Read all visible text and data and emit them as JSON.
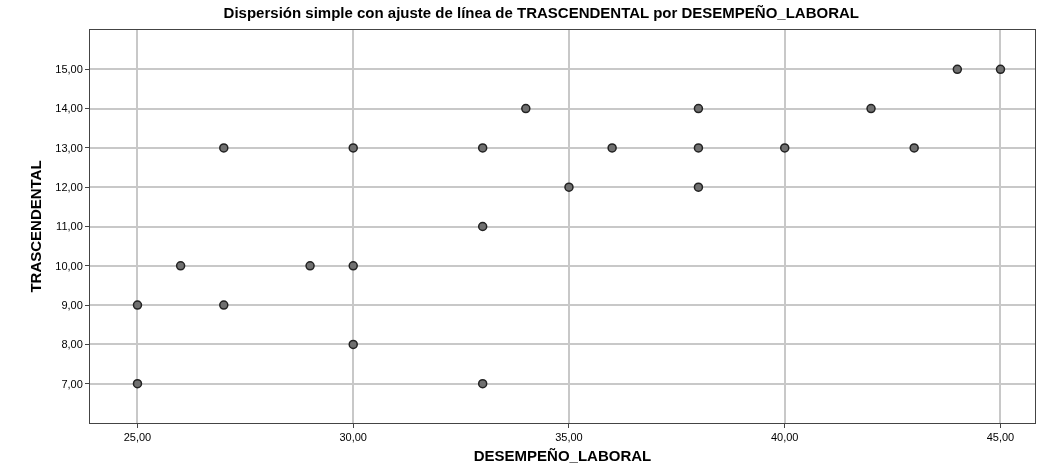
{
  "chart_data": {
    "type": "scatter",
    "title": "Dispersión simple con ajuste de línea de TRASCENDENTAL por DESEMPEÑO_LABORAL",
    "xlabel": "DESEMPEÑO_LABORAL",
    "ylabel": "TRASCENDENTAL",
    "x": [
      25,
      25,
      26,
      27,
      27,
      29,
      30,
      30,
      30,
      33,
      33,
      33,
      34,
      35,
      36,
      38,
      38,
      38,
      40,
      42,
      43,
      44,
      45
    ],
    "series": [
      {
        "color": "#707070",
        "values": [
          9,
          7,
          10,
          13,
          9,
          10,
          13,
          10,
          8,
          13,
          11,
          7,
          14,
          12,
          13,
          14,
          13,
          12,
          13,
          14,
          13,
          15,
          15
        ]
      }
    ],
    "xlim": [
      23.9,
      45.8
    ],
    "xticks": [
      {
        "value": 25,
        "label": "25,00"
      },
      {
        "value": 30,
        "label": "30,00"
      },
      {
        "value": 35,
        "label": "35,00"
      },
      {
        "value": 40,
        "label": "40,00"
      },
      {
        "value": 45,
        "label": "45,00"
      }
    ],
    "ylim": [
      6,
      16
    ],
    "yticks": [
      {
        "value": 7,
        "label": "7,00"
      },
      {
        "value": 8,
        "label": "8,00"
      },
      {
        "value": 9,
        "label": "9,00"
      },
      {
        "value": 10,
        "label": "10,00"
      },
      {
        "value": 11,
        "label": "11,00"
      },
      {
        "value": 12,
        "label": "12,00"
      },
      {
        "value": 13,
        "label": "13,00"
      },
      {
        "value": 14,
        "label": "14,00"
      },
      {
        "value": 15,
        "label": "15,00"
      }
    ],
    "grid": true,
    "marker": "circle"
  }
}
